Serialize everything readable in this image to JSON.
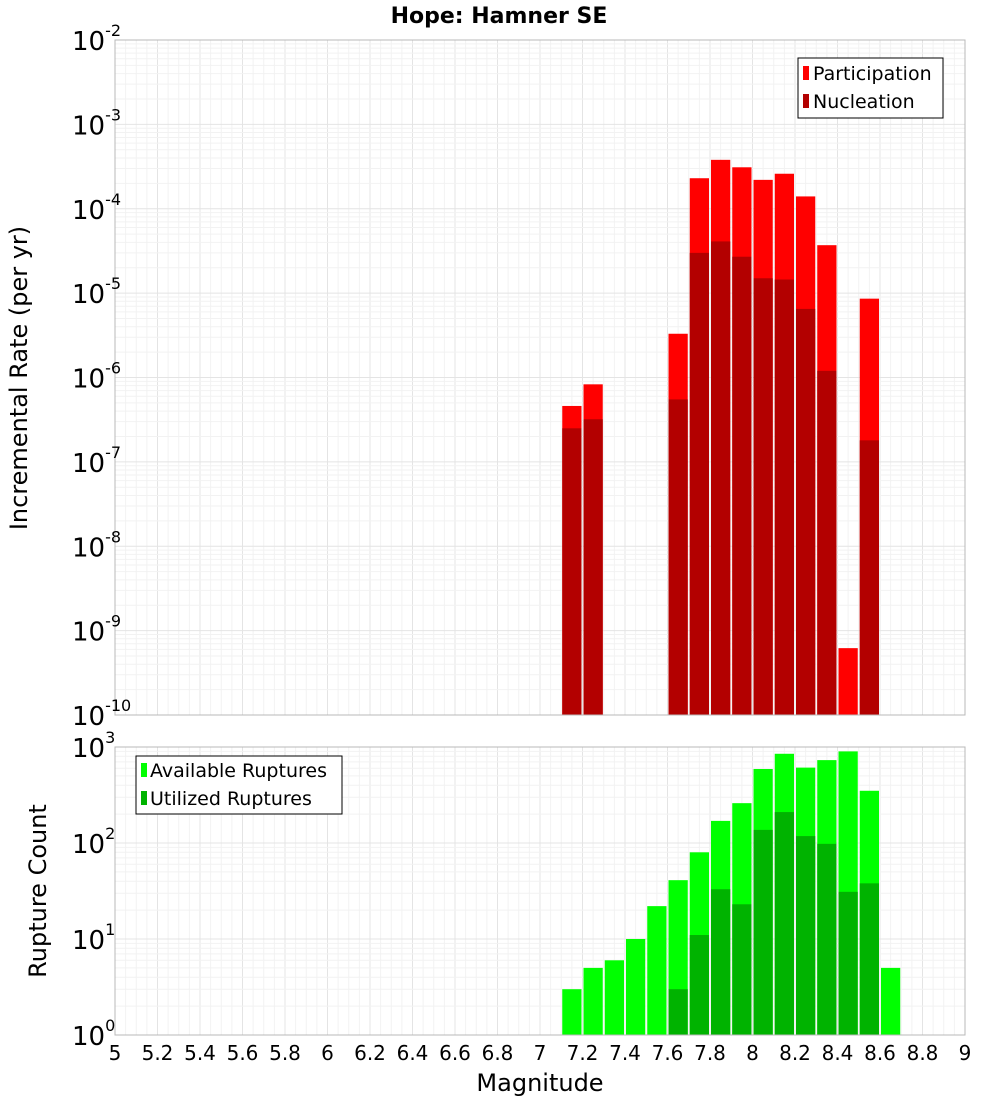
{
  "chart_data": [
    {
      "type": "bar",
      "title": "Hope: Hamner SE",
      "ylabel": "Incremental Rate (per yr)",
      "xlim": [
        5,
        9
      ],
      "ylim_exponents": [
        -10,
        -2
      ],
      "yscale": "log",
      "grid": true,
      "legend_placement": "top-right",
      "series": [
        {
          "name": "Participation",
          "color": "#ff0000",
          "points": [
            {
              "x": 7.15,
              "y": 4.6e-07
            },
            {
              "x": 7.25,
              "y": 8.3e-07
            },
            {
              "x": 7.65,
              "y": 3.3e-06
            },
            {
              "x": 7.75,
              "y": 0.00023
            },
            {
              "x": 7.85,
              "y": 0.00038
            },
            {
              "x": 7.95,
              "y": 0.00031
            },
            {
              "x": 8.05,
              "y": 0.00022
            },
            {
              "x": 8.15,
              "y": 0.00026
            },
            {
              "x": 8.25,
              "y": 0.00014
            },
            {
              "x": 8.35,
              "y": 3.7e-05
            },
            {
              "x": 8.45,
              "y": 6.2e-10
            },
            {
              "x": 8.55,
              "y": 8.6e-06
            }
          ]
        },
        {
          "name": "Nucleation",
          "color": "#b30000",
          "points": [
            {
              "x": 7.15,
              "y": 2.5e-07
            },
            {
              "x": 7.25,
              "y": 3.2e-07
            },
            {
              "x": 7.65,
              "y": 5.5e-07
            },
            {
              "x": 7.75,
              "y": 3e-05
            },
            {
              "x": 7.85,
              "y": 4.1e-05
            },
            {
              "x": 7.95,
              "y": 2.7e-05
            },
            {
              "x": 8.05,
              "y": 1.5e-05
            },
            {
              "x": 8.15,
              "y": 1.45e-05
            },
            {
              "x": 8.25,
              "y": 6.5e-06
            },
            {
              "x": 8.35,
              "y": 1.2e-06
            },
            {
              "x": 8.55,
              "y": 1.8e-07
            }
          ]
        }
      ]
    },
    {
      "type": "bar",
      "xlabel": "Magnitude",
      "ylabel": "Rupture Count",
      "xlim": [
        5,
        9
      ],
      "ylim_exponents": [
        0,
        3
      ],
      "yscale": "log",
      "grid": true,
      "legend_placement": "top-left",
      "x_ticks": [
        "5",
        "5.2",
        "5.4",
        "5.6",
        "5.8",
        "6",
        "6.2",
        "6.4",
        "6.6",
        "6.8",
        "7",
        "7.2",
        "7.4",
        "7.6",
        "7.8",
        "8",
        "8.2",
        "8.4",
        "8.6",
        "8.8",
        "9"
      ],
      "series": [
        {
          "name": "Available Ruptures",
          "color": "#00ff00",
          "points": [
            {
              "x": 6.85,
              "y": 1
            },
            {
              "x": 7.15,
              "y": 3
            },
            {
              "x": 7.25,
              "y": 5
            },
            {
              "x": 7.35,
              "y": 6
            },
            {
              "x": 7.45,
              "y": 10
            },
            {
              "x": 7.55,
              "y": 22
            },
            {
              "x": 7.65,
              "y": 41
            },
            {
              "x": 7.75,
              "y": 80
            },
            {
              "x": 7.85,
              "y": 170
            },
            {
              "x": 7.95,
              "y": 260
            },
            {
              "x": 8.05,
              "y": 590
            },
            {
              "x": 8.15,
              "y": 850
            },
            {
              "x": 8.25,
              "y": 610
            },
            {
              "x": 8.35,
              "y": 730
            },
            {
              "x": 8.45,
              "y": 900
            },
            {
              "x": 8.55,
              "y": 350
            },
            {
              "x": 8.65,
              "y": 5
            }
          ]
        },
        {
          "name": "Utilized Ruptures",
          "color": "#00b300",
          "points": [
            {
              "x": 7.15,
              "y": 1
            },
            {
              "x": 7.25,
              "y": 1
            },
            {
              "x": 7.65,
              "y": 3
            },
            {
              "x": 7.75,
              "y": 11
            },
            {
              "x": 7.85,
              "y": 33
            },
            {
              "x": 7.95,
              "y": 23
            },
            {
              "x": 8.05,
              "y": 137
            },
            {
              "x": 8.15,
              "y": 210
            },
            {
              "x": 8.25,
              "y": 118
            },
            {
              "x": 8.35,
              "y": 98
            },
            {
              "x": 8.45,
              "y": 31
            },
            {
              "x": 8.55,
              "y": 38
            }
          ]
        }
      ]
    }
  ]
}
